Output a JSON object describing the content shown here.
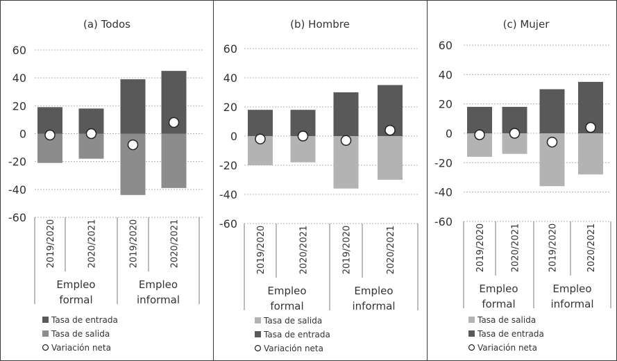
{
  "chart_data": [
    {
      "type": "bar",
      "title": "(a) Todos",
      "categories": [
        "2019/2020",
        "2020/2021",
        "2019/2020",
        "2020/2021"
      ],
      "groups": [
        {
          "label": "Empleo formal",
          "lines": [
            "Empleo",
            "formal"
          ]
        },
        {
          "label": "Empleo informal",
          "lines": [
            "Empleo",
            "informal"
          ]
        }
      ],
      "ylim": [
        -60,
        60
      ],
      "yticks": [
        "60",
        "40",
        "20",
        "0",
        "-20",
        "-40",
        "-60"
      ],
      "grid": true,
      "series": [
        {
          "name": "Tasa de entrada",
          "kind": "bar",
          "color": "#595959",
          "values": [
            19,
            18,
            39,
            45
          ]
        },
        {
          "name": "Tasa de salida",
          "kind": "bar",
          "color": "#8c8c8c",
          "values": [
            -21,
            -18,
            -44,
            -39
          ]
        },
        {
          "name": "Variación neta",
          "kind": "marker",
          "values": [
            -1,
            0,
            -8,
            8
          ]
        }
      ],
      "legend": [
        "Tasa de entrada",
        "Tasa de salida",
        "Variación neta"
      ]
    },
    {
      "type": "bar",
      "title": "(b) Hombre",
      "categories": [
        "2019/2020",
        "2020/2021",
        "2019/2020",
        "2020/2021"
      ],
      "groups": [
        {
          "label": "Empleo formal",
          "lines": [
            "Empleo",
            "formal"
          ]
        },
        {
          "label": "Empleo informal",
          "lines": [
            "Empleo",
            "informal"
          ]
        }
      ],
      "ylim": [
        -60,
        60
      ],
      "yticks": [
        "60",
        "40",
        "20",
        "0",
        "-20",
        "-40",
        "-60"
      ],
      "grid": true,
      "series": [
        {
          "name": "Tasa de salida",
          "kind": "bar",
          "color": "#b3b3b3",
          "values": [
            -20,
            -18,
            -36,
            -30
          ]
        },
        {
          "name": "Tasa de entrada",
          "kind": "bar",
          "color": "#595959",
          "values": [
            18,
            18,
            30,
            35
          ]
        },
        {
          "name": "Variación neta",
          "kind": "marker",
          "values": [
            -2,
            0,
            -3,
            4
          ]
        }
      ],
      "legend": [
        "Tasa de salida",
        "Tasa de entrada",
        "Variación neta"
      ]
    },
    {
      "type": "bar",
      "title": "(c) Mujer",
      "categories": [
        "2019/2020",
        "2020/2021",
        "2019/2020",
        "2020/2021"
      ],
      "groups": [
        {
          "label": "Empleo formal",
          "lines": [
            "Empleo",
            "formal"
          ]
        },
        {
          "label": "Empleo informal",
          "lines": [
            "Empleo",
            "informal"
          ]
        }
      ],
      "ylim": [
        -60,
        60
      ],
      "yticks": [
        "60",
        "40",
        "20",
        "0",
        "-20",
        "-40",
        "-60"
      ],
      "grid": true,
      "series": [
        {
          "name": "Tasa de salida",
          "kind": "bar",
          "color": "#b3b3b3",
          "values": [
            -16,
            -14,
            -36,
            -28
          ]
        },
        {
          "name": "Tasa de entrada",
          "kind": "bar",
          "color": "#595959",
          "values": [
            18,
            18,
            30,
            35
          ]
        },
        {
          "name": "Variación neta",
          "kind": "marker",
          "values": [
            -1,
            0,
            -6,
            4
          ]
        }
      ],
      "legend": [
        "Tasa de salida",
        "Tasa de entrada",
        "Variación neta"
      ]
    }
  ]
}
